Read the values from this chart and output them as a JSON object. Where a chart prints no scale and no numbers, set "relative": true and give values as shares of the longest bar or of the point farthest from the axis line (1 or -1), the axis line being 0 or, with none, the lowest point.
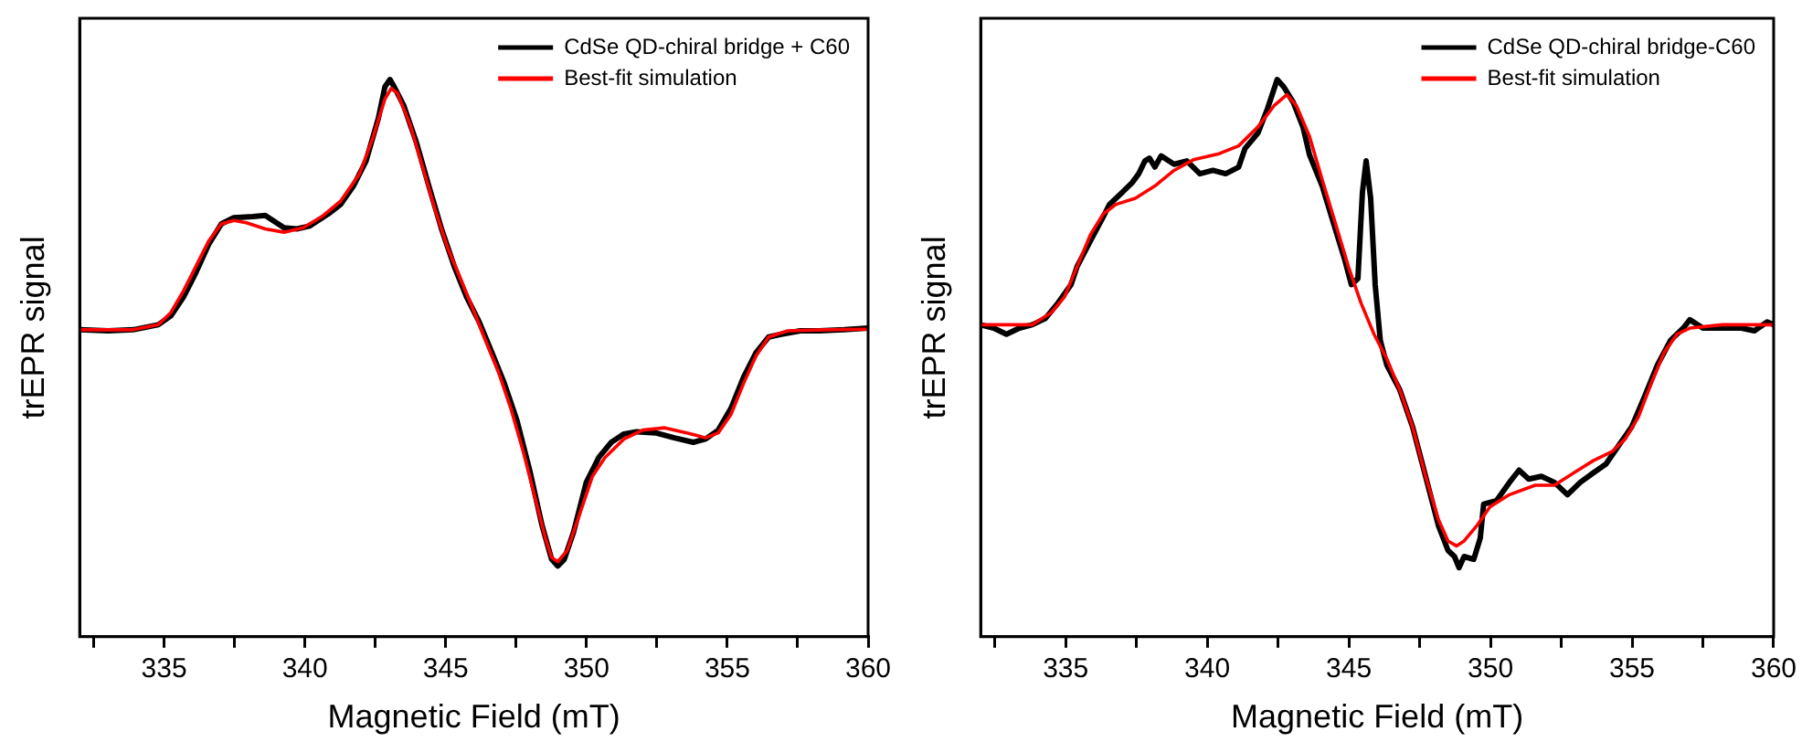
{
  "chart_data": [
    {
      "type": "line",
      "xlabel": "Magnetic Field (mT)",
      "ylabel": "trEPR signal",
      "relative": true,
      "legend": "top right",
      "xlim": [
        332,
        360
      ],
      "xticks": [
        {
          "value": 332.5,
          "label": null
        },
        335,
        {
          "value": 337.5,
          "label": null
        },
        340,
        {
          "value": 342.5,
          "label": null
        },
        345,
        {
          "value": 347.5,
          "label": null
        },
        350,
        {
          "value": 352.5,
          "label": null
        },
        355,
        {
          "value": 357.5,
          "label": null
        },
        360
      ],
      "series": [
        {
          "name": "CdSe QD-chiral bridge + C60",
          "color": "#000000",
          "x": [
            332.0,
            333.01,
            333.9,
            334.79,
            335.24,
            335.69,
            336.13,
            336.58,
            337.03,
            337.47,
            338.15,
            338.59,
            339.26,
            339.71,
            340.16,
            340.83,
            341.27,
            341.72,
            342.17,
            342.61,
            342.84,
            343.02,
            343.17,
            343.51,
            343.96,
            344.4,
            344.85,
            345.3,
            345.74,
            346.19,
            346.64,
            347.08,
            347.53,
            347.98,
            348.42,
            348.76,
            348.98,
            349.21,
            349.54,
            349.99,
            350.44,
            350.88,
            351.33,
            351.78,
            352.45,
            353.12,
            353.79,
            354.23,
            354.68,
            355.13,
            355.58,
            356.02,
            356.47,
            356.92,
            357.59,
            358.26,
            359.15,
            360.0
          ],
          "values": [
            0.551,
            0.549,
            0.551,
            0.56,
            0.576,
            0.61,
            0.654,
            0.704,
            0.741,
            0.752,
            0.754,
            0.756,
            0.734,
            0.732,
            0.737,
            0.759,
            0.776,
            0.809,
            0.854,
            0.931,
            0.987,
            1.0,
            0.987,
            0.953,
            0.887,
            0.809,
            0.732,
            0.665,
            0.61,
            0.565,
            0.51,
            0.455,
            0.388,
            0.299,
            0.2,
            0.139,
            0.127,
            0.139,
            0.188,
            0.277,
            0.322,
            0.349,
            0.364,
            0.368,
            0.366,
            0.357,
            0.349,
            0.355,
            0.371,
            0.41,
            0.466,
            0.51,
            0.538,
            0.543,
            0.549,
            0.549,
            0.551,
            0.554
          ]
        },
        {
          "name": "Best-fit simulation",
          "color": "#ff0000",
          "x": [
            332.0,
            333.9,
            334.79,
            335.24,
            335.69,
            336.13,
            336.58,
            337.03,
            337.47,
            337.92,
            338.59,
            339.26,
            339.93,
            340.6,
            341.27,
            341.94,
            342.39,
            342.84,
            343.06,
            343.28,
            343.73,
            344.18,
            344.63,
            345.07,
            345.52,
            345.97,
            346.41,
            346.86,
            347.31,
            347.75,
            348.2,
            348.54,
            348.76,
            348.98,
            349.32,
            349.77,
            350.21,
            350.66,
            351.33,
            352.0,
            352.78,
            353.56,
            354.23,
            354.68,
            355.13,
            355.58,
            356.02,
            356.47,
            357.14,
            358.48,
            360.0
          ],
          "values": [
            0.551,
            0.551,
            0.56,
            0.582,
            0.621,
            0.665,
            0.71,
            0.741,
            0.747,
            0.743,
            0.732,
            0.726,
            0.734,
            0.754,
            0.782,
            0.831,
            0.892,
            0.965,
            0.984,
            0.976,
            0.92,
            0.843,
            0.765,
            0.698,
            0.643,
            0.588,
            0.532,
            0.477,
            0.41,
            0.333,
            0.244,
            0.177,
            0.142,
            0.135,
            0.155,
            0.222,
            0.288,
            0.322,
            0.355,
            0.371,
            0.375,
            0.366,
            0.357,
            0.366,
            0.399,
            0.455,
            0.504,
            0.538,
            0.549,
            0.551,
            0.552
          ]
        }
      ]
    },
    {
      "type": "line",
      "xlabel": "Magnetic Field (mT)",
      "ylabel": "trEPR signal",
      "relative": true,
      "legend": "top right",
      "xlim": [
        332,
        360
      ],
      "xticks": [
        {
          "value": 332.5,
          "label": null
        },
        335,
        {
          "value": 337.5,
          "label": null
        },
        340,
        {
          "value": 342.5,
          "label": null
        },
        345,
        {
          "value": 347.5,
          "label": null
        },
        350,
        {
          "value": 352.5,
          "label": null
        },
        355,
        {
          "value": 357.5,
          "label": null
        },
        360
      ],
      "series": [
        {
          "name": "CdSe QD-chiral bridge-C60",
          "color": "#000000",
          "x": [
            332.0,
            332.46,
            332.91,
            333.37,
            333.82,
            334.28,
            334.73,
            335.19,
            335.41,
            335.87,
            336.33,
            336.55,
            337.01,
            337.35,
            337.58,
            337.8,
            337.96,
            338.15,
            338.37,
            338.83,
            339.28,
            339.74,
            340.2,
            340.65,
            341.11,
            341.33,
            341.79,
            342.13,
            342.47,
            342.7,
            343.04,
            343.38,
            343.61,
            344.06,
            344.52,
            344.86,
            345.09,
            345.32,
            345.48,
            345.61,
            345.77,
            345.93,
            346.11,
            346.34,
            346.8,
            347.25,
            347.71,
            348.16,
            348.5,
            348.73,
            348.89,
            349.07,
            349.41,
            349.64,
            349.76,
            350.21,
            350.67,
            351.01,
            351.35,
            351.8,
            352.26,
            352.72,
            353.17,
            353.63,
            354.08,
            354.54,
            354.99,
            355.45,
            355.9,
            356.36,
            356.81,
            357.04,
            357.5,
            358.18,
            358.86,
            359.32,
            359.77,
            360.0
          ],
          "values": [
            0.56,
            0.554,
            0.543,
            0.554,
            0.56,
            0.571,
            0.599,
            0.632,
            0.665,
            0.71,
            0.754,
            0.776,
            0.798,
            0.815,
            0.831,
            0.854,
            0.859,
            0.843,
            0.863,
            0.848,
            0.854,
            0.831,
            0.837,
            0.831,
            0.843,
            0.876,
            0.904,
            0.948,
            1.0,
            0.987,
            0.959,
            0.915,
            0.865,
            0.809,
            0.732,
            0.676,
            0.632,
            0.643,
            0.798,
            0.854,
            0.787,
            0.632,
            0.532,
            0.488,
            0.443,
            0.377,
            0.288,
            0.2,
            0.155,
            0.144,
            0.124,
            0.144,
            0.139,
            0.177,
            0.238,
            0.244,
            0.277,
            0.299,
            0.283,
            0.288,
            0.277,
            0.255,
            0.277,
            0.294,
            0.31,
            0.344,
            0.377,
            0.432,
            0.488,
            0.532,
            0.554,
            0.569,
            0.554,
            0.554,
            0.554,
            0.549,
            0.565,
            0.56
          ]
        },
        {
          "name": "Best-fit simulation",
          "color": "#ff0000",
          "x": [
            332.0,
            333.82,
            334.5,
            334.96,
            335.41,
            335.87,
            336.33,
            336.78,
            337.46,
            338.15,
            338.83,
            339.51,
            340.42,
            341.11,
            341.79,
            342.36,
            342.81,
            343.15,
            343.61,
            344.06,
            344.52,
            344.98,
            345.43,
            345.89,
            346.34,
            346.8,
            347.25,
            347.71,
            348.16,
            348.5,
            348.8,
            349.07,
            349.53,
            349.98,
            350.67,
            351.58,
            352.26,
            352.94,
            353.63,
            354.31,
            354.76,
            355.22,
            355.68,
            356.13,
            356.59,
            357.04,
            358.18,
            360.0
          ],
          "values": [
            0.56,
            0.56,
            0.582,
            0.61,
            0.665,
            0.721,
            0.759,
            0.776,
            0.787,
            0.809,
            0.837,
            0.856,
            0.867,
            0.881,
            0.915,
            0.953,
            0.973,
            0.953,
            0.898,
            0.82,
            0.743,
            0.665,
            0.599,
            0.543,
            0.499,
            0.443,
            0.377,
            0.288,
            0.211,
            0.172,
            0.163,
            0.172,
            0.2,
            0.233,
            0.255,
            0.272,
            0.272,
            0.294,
            0.316,
            0.333,
            0.355,
            0.394,
            0.455,
            0.51,
            0.543,
            0.554,
            0.56,
            0.56
          ]
        }
      ]
    }
  ]
}
